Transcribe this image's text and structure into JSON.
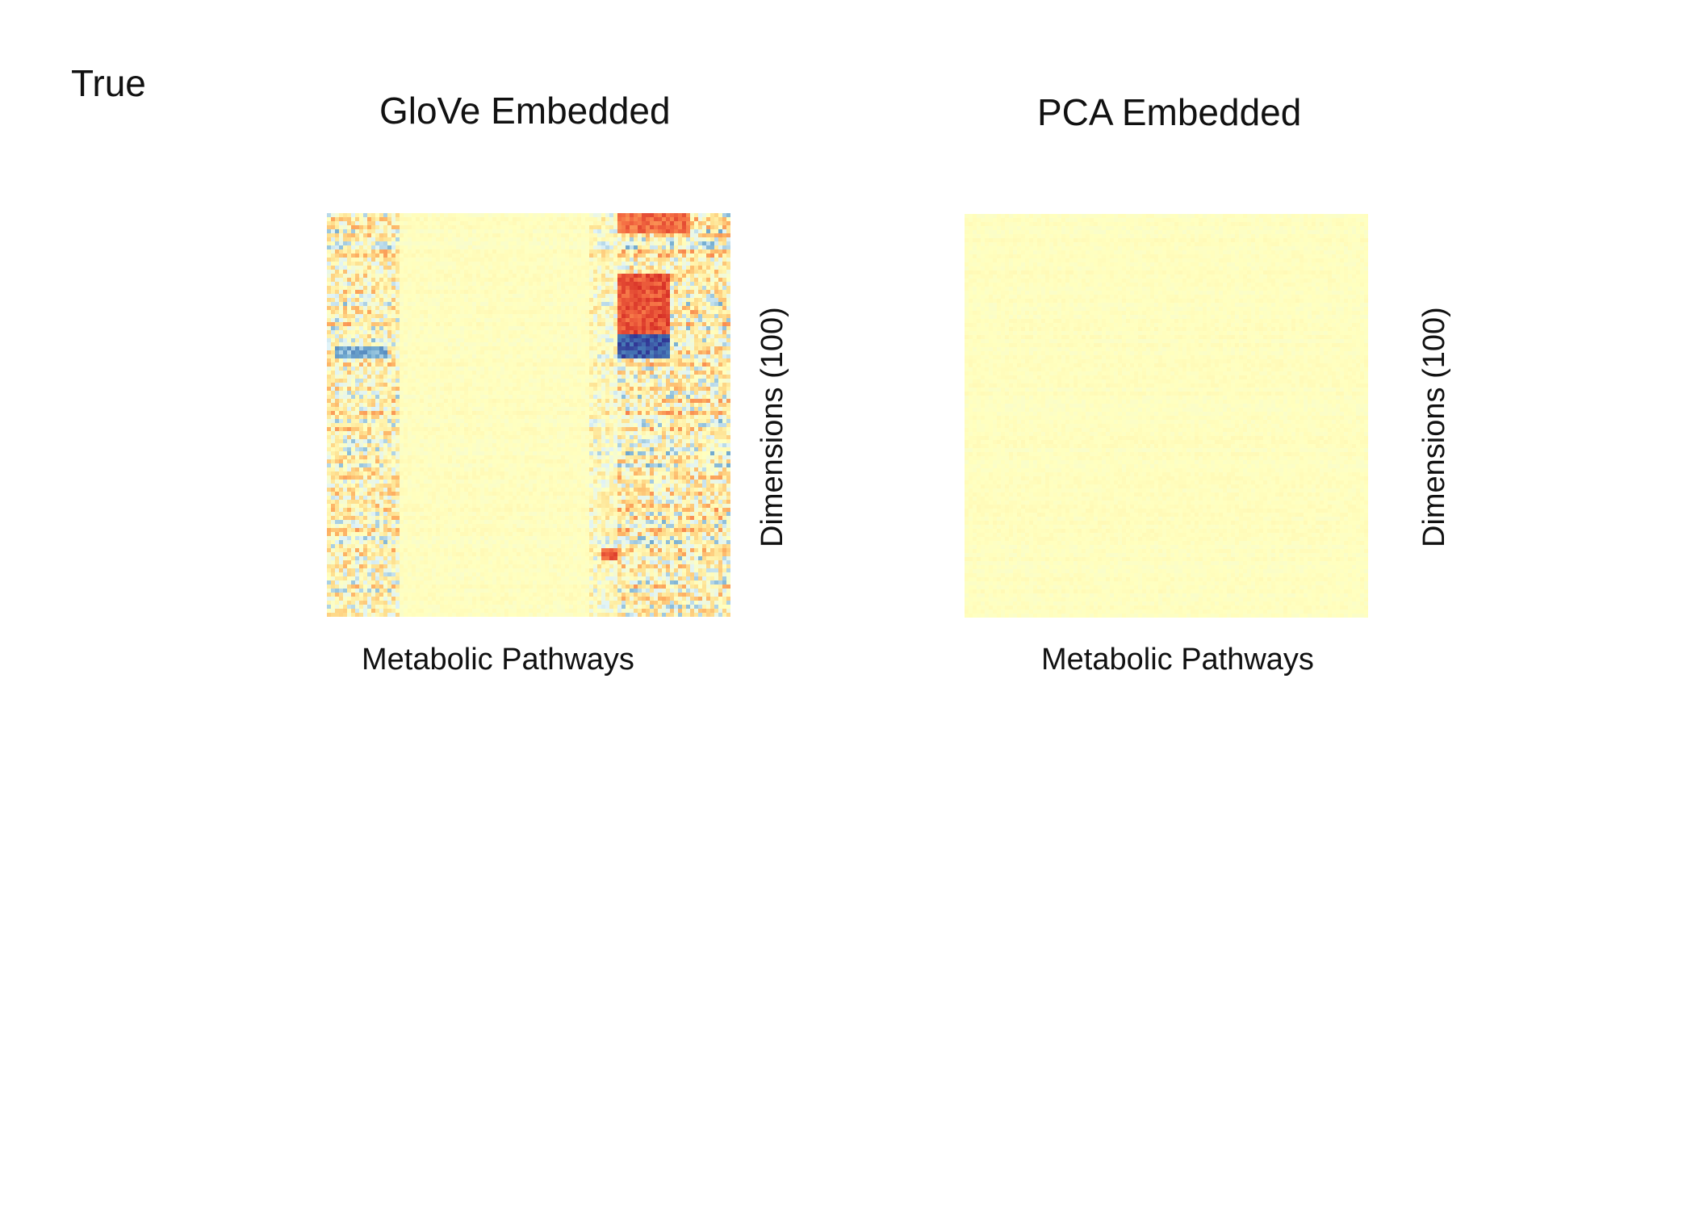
{
  "figure": {
    "corner_label": "True"
  },
  "chart_data": [
    {
      "type": "heatmap",
      "title": "GloVe Embedded",
      "xlabel": "Metabolic Pathways",
      "ylabel": "Dimensions (100)",
      "rows": 100,
      "columns": 100,
      "colormap": "RdYlBu_r",
      "value_range": [
        -1,
        1
      ],
      "column_bands": [
        {
          "from": 0.0,
          "to": 0.18,
          "amplitude": 0.45,
          "bias": 0.05
        },
        {
          "from": 0.18,
          "to": 0.65,
          "amplitude": 0.05,
          "bias": 0.0
        },
        {
          "from": 0.65,
          "to": 0.72,
          "amplitude": 0.3,
          "bias": 0.0
        },
        {
          "from": 0.72,
          "to": 1.0,
          "amplitude": 0.5,
          "bias": 0.05
        }
      ],
      "row_features": [
        {
          "row_from": 0.0,
          "row_to": 0.05,
          "col_from": 0.72,
          "col_to": 0.9,
          "value": 0.75
        },
        {
          "row_from": 0.15,
          "row_to": 0.3,
          "col_from": 0.72,
          "col_to": 0.85,
          "value": 0.85
        },
        {
          "row_from": 0.3,
          "row_to": 0.36,
          "col_from": 0.72,
          "col_to": 0.85,
          "value": -0.85
        },
        {
          "row_from": 0.33,
          "row_to": 0.36,
          "col_from": 0.02,
          "col_to": 0.15,
          "value": -0.5
        },
        {
          "row_from": 0.83,
          "row_to": 0.86,
          "col_from": 0.68,
          "col_to": 0.72,
          "value": 0.8
        }
      ],
      "overall_tendency": "mixed red/orange and blue values concentrated in left and right column bands; central band near zero (pale yellow)"
    },
    {
      "type": "heatmap",
      "title": "PCA Embedded",
      "xlabel": "Metabolic Pathways",
      "ylabel": "Dimensions (100)",
      "rows": 100,
      "columns": 100,
      "colormap": "RdYlBu_r",
      "value_range": [
        -1,
        1
      ],
      "column_bands": [
        {
          "from": 0.0,
          "to": 1.0,
          "amplitude": 0.04,
          "bias": 0.0
        }
      ],
      "row_features": [],
      "overall_tendency": "nearly uniform pale yellow; all values close to zero"
    }
  ]
}
